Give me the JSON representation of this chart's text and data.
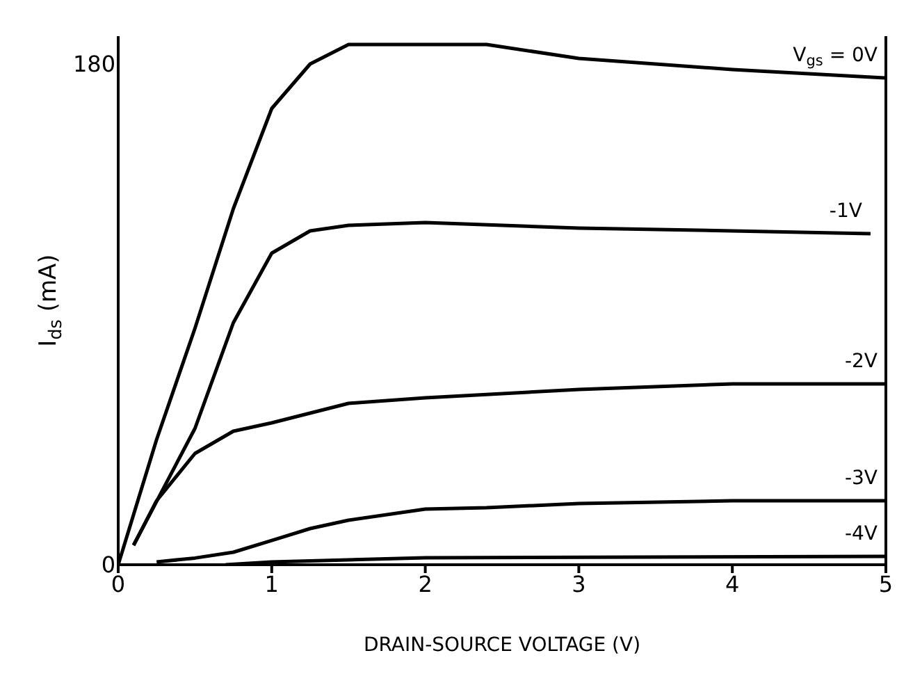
{
  "chart_data": {
    "type": "line",
    "xlabel": "DRAIN-SOURCE VOLTAGE (V)",
    "ylabel": "I$_{ds}$ (mA)",
    "xlim": [
      0,
      5
    ],
    "xticks": [
      0,
      1,
      2,
      3,
      4,
      5
    ],
    "ylim": [
      0,
      190
    ],
    "yticks": [
      0,
      180
    ],
    "marker": "none",
    "line_style": "solid",
    "series": [
      {
        "name": "V$_{gs}$ = 0V",
        "color": "#000000",
        "x": [
          0,
          0.25,
          0.5,
          0.75,
          1,
          1.25,
          1.5,
          2,
          2.4,
          3,
          4,
          5
        ],
        "values": [
          0,
          45,
          85,
          128,
          164,
          180,
          187,
          187,
          187,
          182,
          178,
          175
        ]
      },
      {
        "name": "-1V",
        "color": "#000000",
        "x": [
          0.1,
          0.5,
          0.75,
          1,
          1.25,
          1.5,
          2,
          3,
          4,
          4.9
        ],
        "values": [
          7,
          49,
          87,
          112,
          120,
          122,
          123,
          121,
          120,
          119
        ]
      },
      {
        "name": "-2V",
        "color": "#000000",
        "x": [
          0.1,
          0.25,
          0.5,
          0.75,
          1,
          1.5,
          2,
          3,
          4,
          5
        ],
        "values": [
          7,
          23,
          40,
          48,
          51,
          58,
          60,
          63,
          65,
          65
        ]
      },
      {
        "name": "-3V",
        "color": "#000000",
        "x": [
          0.25,
          0.5,
          0.75,
          1,
          1.25,
          1.5,
          2,
          2.4,
          3,
          4,
          5
        ],
        "values": [
          1,
          2.4,
          4.5,
          8.7,
          13,
          16,
          20,
          20.5,
          22,
          23,
          23
        ]
      },
      {
        "name": "-4V",
        "color": "#000000",
        "x": [
          0.7,
          1,
          2,
          5
        ],
        "values": [
          0,
          1,
          2.5,
          3
        ]
      }
    ]
  }
}
